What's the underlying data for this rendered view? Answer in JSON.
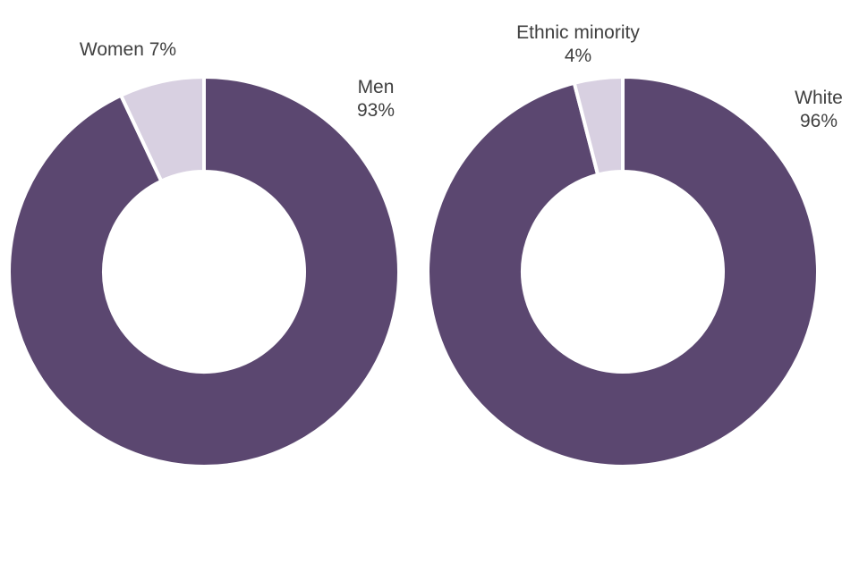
{
  "chart_data": [
    {
      "type": "pie",
      "variant": "donut",
      "title": "",
      "categories": [
        "Men",
        "Women"
      ],
      "values": [
        93,
        7
      ],
      "unit": "%",
      "colors": [
        "#5b4770",
        "#d8d0e1"
      ],
      "labels": [
        {
          "lines": [
            "Men",
            "93%"
          ]
        },
        {
          "lines": [
            "Women 7%"
          ]
        }
      ]
    },
    {
      "type": "pie",
      "variant": "donut",
      "title": "",
      "categories": [
        "White",
        "Ethnic minority"
      ],
      "values": [
        96,
        4
      ],
      "unit": "%",
      "colors": [
        "#5b4770",
        "#d8d0e1"
      ],
      "labels": [
        {
          "lines": [
            "White",
            "96%"
          ]
        },
        {
          "lines": [
            "Ethnic minority",
            "4%"
          ]
        }
      ]
    }
  ]
}
